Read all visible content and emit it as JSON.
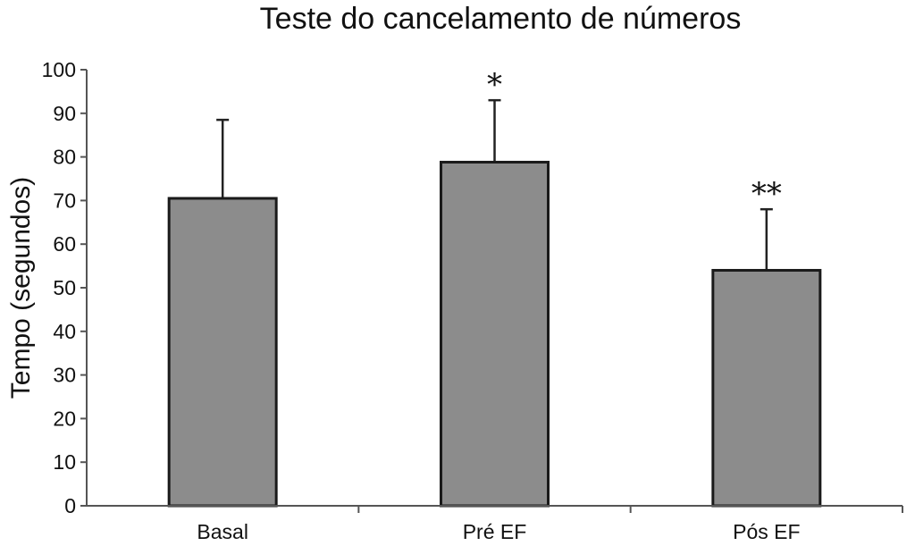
{
  "chart_data": {
    "type": "bar",
    "title": "Teste do cancelamento de números",
    "xlabel": "",
    "ylabel": "Tempo (segundos)",
    "ylim": [
      0,
      100
    ],
    "yticks": [
      0,
      10,
      20,
      30,
      40,
      50,
      60,
      70,
      80,
      90,
      100
    ],
    "categories": [
      "Basal",
      "Pré EF",
      "Pós EF"
    ],
    "values": [
      70.5,
      78.8,
      54
    ],
    "error_upper": [
      88.5,
      93,
      68
    ],
    "annotations": [
      "",
      "*",
      "**"
    ],
    "bar_color": "#8c8c8c",
    "grid": false
  }
}
